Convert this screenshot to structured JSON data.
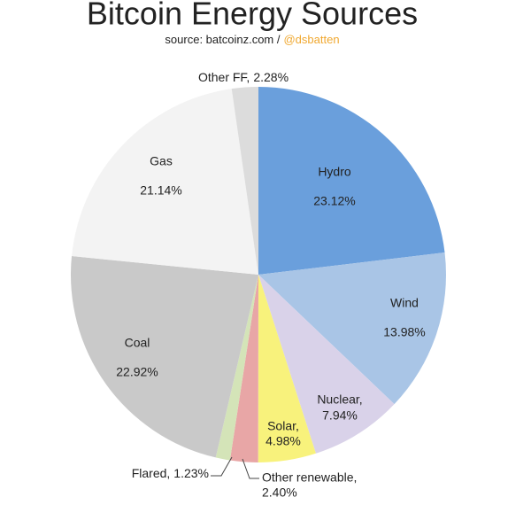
{
  "chart_data": {
    "type": "pie",
    "title": "Bitcoin Energy Sources",
    "subtitle": "source: batcoinz.com /",
    "subtitle_handle": "@dsbatten",
    "categories": [
      "Hydro",
      "Wind",
      "Nuclear,",
      "Solar,",
      "Other renewable,",
      "Flared,",
      "Coal",
      "Gas",
      "Other FF,"
    ],
    "values": [
      23.12,
      13.98,
      7.94,
      4.98,
      2.4,
      1.23,
      22.92,
      21.14,
      2.28
    ],
    "value_labels": [
      "23.12%",
      "13.98%",
      "7.94%",
      "4.98%",
      "2.40%",
      "1.23%",
      "22.92%",
      "21.14%",
      "2.28%"
    ],
    "colors": [
      "#6a9fdc",
      "#a9c5e6",
      "#d9d2e9",
      "#f8f27c",
      "#e8a6a6",
      "#d4e4b8",
      "#c9c9c9",
      "#f3f3f3",
      "#dcdcdc"
    ]
  }
}
